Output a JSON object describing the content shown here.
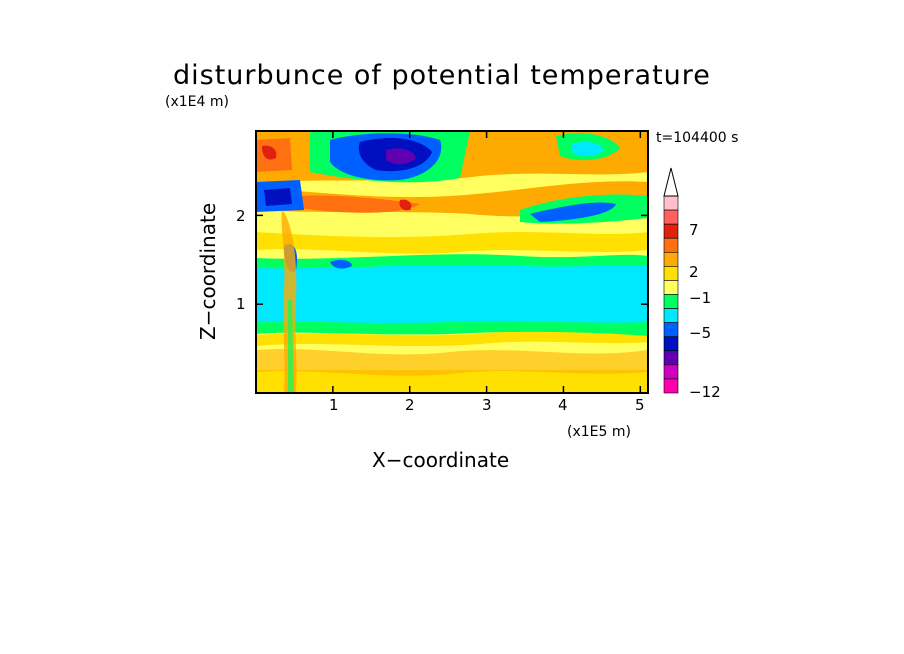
{
  "chart_data": {
    "type": "heatmap",
    "title": "disturbunce of potential temperature",
    "time_label": "t=104400 s",
    "xlabel": "X−coordinate",
    "ylabel": "Z−coordinate",
    "x_unit": "(x1E5 m)",
    "y_unit": "(x1E4 m)",
    "xlim": [
      0,
      5.1
    ],
    "ylim": [
      0,
      2.95
    ],
    "x_ticks": [
      "1",
      "2",
      "3",
      "4",
      "5"
    ],
    "y_ticks": [
      "1",
      "2"
    ],
    "colorbar": {
      "labels": [
        "7",
        "2",
        "−1",
        "−5",
        "−12"
      ],
      "colors": [
        "#ffc0cb",
        "#ff6060",
        "#e02010",
        "#ff7010",
        "#ffaa00",
        "#ffe000",
        "#ffff60",
        "#00ff60",
        "#00e8ff",
        "#0060ff",
        "#0010c0",
        "#6000b0",
        "#d000c0",
        "#ff00b0"
      ],
      "extend": "max"
    },
    "regions": [
      {
        "label": "cyan band",
        "value": -1,
        "x": [
          0,
          5.1
        ],
        "z": [
          0.8,
          1.35
        ]
      },
      {
        "label": "upper blue/purple core",
        "value": -8,
        "x": [
          1.2,
          2.6
        ],
        "z": [
          2.4,
          2.9
        ]
      },
      {
        "label": "upper right blue",
        "value": -5,
        "x": [
          3.7,
          4.9
        ],
        "z": [
          1.9,
          2.2
        ]
      },
      {
        "label": "upper left red",
        "value": 7,
        "x": [
          0,
          0.3
        ],
        "z": [
          2.5,
          2.7
        ]
      }
    ]
  }
}
